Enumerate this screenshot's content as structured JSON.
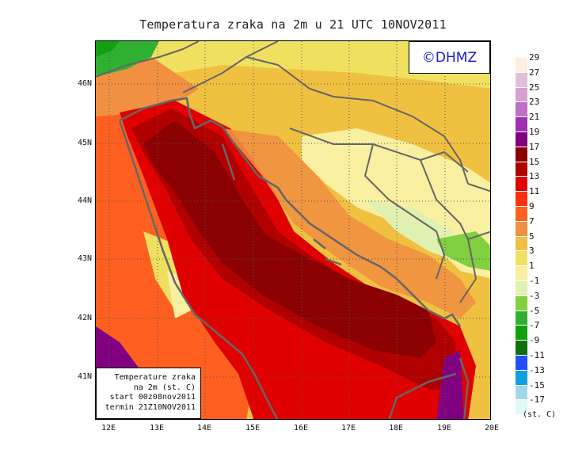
{
  "title": "Temperatura zraka na 2m u 21 UTC 10NOV2011",
  "copyright": "©DHMZ",
  "info_box": {
    "line1": "Temperature zraka",
    "line2": "na 2m (st. C)",
    "line3": "start 00z08nov2011",
    "line4": "termin 21Z10NOV2011"
  },
  "lat_labels": [
    "46N",
    "45N",
    "44N",
    "43N",
    "42N",
    "41N"
  ],
  "lon_labels": [
    "12E",
    "13E",
    "14E",
    "15E",
    "16E",
    "17E",
    "18E",
    "19E",
    "20E"
  ],
  "legend": {
    "unit": "(st. C)",
    "labels": [
      "29",
      "27",
      "25",
      "23",
      "21",
      "19",
      "17",
      "15",
      "13",
      "11",
      "9",
      "7",
      "5",
      "3",
      "1",
      "-1",
      "-3",
      "-5",
      "-7",
      "-9",
      "-11",
      "-13",
      "-15",
      "-17"
    ],
    "colors": [
      "#fdeee0",
      "#e0c0d8",
      "#d8a0d0",
      "#c070c8",
      "#a030b0",
      "#800080",
      "#8b0000",
      "#b00000",
      "#e00000",
      "#ff3010",
      "#ff6020",
      "#f09040",
      "#f0c040",
      "#f0e060",
      "#f8f0a0",
      "#e0f0b0",
      "#80d040",
      "#30b030",
      "#10a010",
      "#107010",
      "#2050ff",
      "#10a0e0",
      "#a0d8e8",
      "#e0f8f8"
    ]
  },
  "map": {
    "lon_range": [
      11.8,
      20.0
    ],
    "lat_range": [
      40.3,
      46.8
    ]
  }
}
